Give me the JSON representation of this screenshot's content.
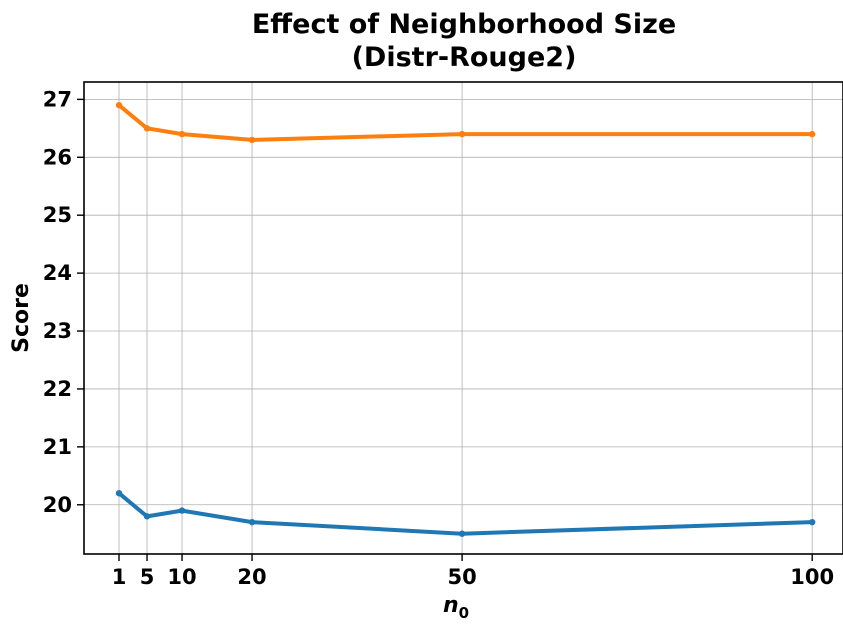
{
  "chart_data": {
    "type": "line",
    "title": [
      "Effect of Neighborhood Size",
      "(Distr-Rouge2)"
    ],
    "xlabel_base": "n",
    "xlabel_sub": "0",
    "ylabel": "Score",
    "x": [
      1,
      5,
      10,
      20,
      50,
      100
    ],
    "x_ticks": [
      1,
      5,
      10,
      20,
      50,
      100
    ],
    "y_ticks": [
      20,
      21,
      22,
      23,
      24,
      25,
      26,
      27
    ],
    "xlim": [
      -4,
      104.4
    ],
    "ylim": [
      19.15,
      27.3
    ],
    "grid": true,
    "series": [
      {
        "color": "#ff7f0e",
        "values": [
          26.9,
          26.5,
          26.4,
          26.3,
          26.4,
          26.4
        ]
      },
      {
        "color": "#1f77b4",
        "values": [
          20.2,
          19.8,
          19.9,
          19.7,
          19.5,
          19.7
        ]
      }
    ]
  }
}
